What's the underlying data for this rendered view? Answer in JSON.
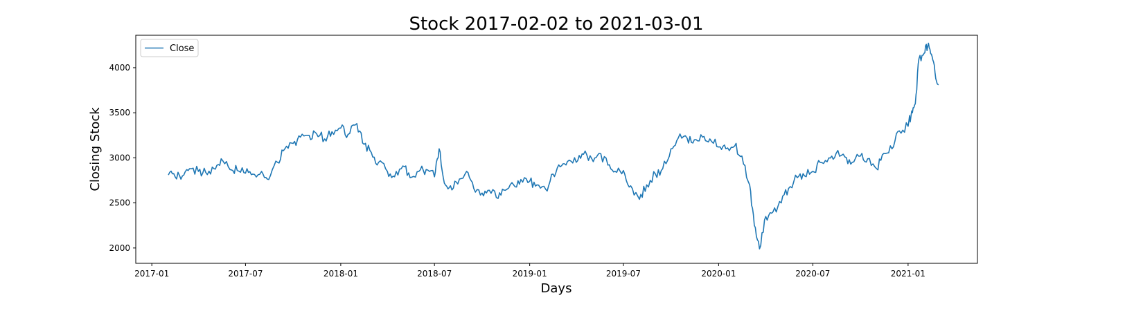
{
  "chart_data": {
    "type": "line",
    "title": "Stock 2017-02-02 to 2021-03-01",
    "xlabel": "Days",
    "ylabel": "Closing Stock",
    "x_ticks": [
      "2017-01",
      "2017-07",
      "2018-01",
      "2018-07",
      "2019-01",
      "2019-07",
      "2020-01",
      "2020-07",
      "2021-01"
    ],
    "y_ticks": [
      2000,
      2500,
      3000,
      3500,
      4000
    ],
    "xlim": [
      "2016-12-01",
      "2021-05-15"
    ],
    "ylim": [
      1830,
      4360
    ],
    "grid": false,
    "legend": {
      "position": "top-left",
      "entries": [
        "Close"
      ]
    },
    "series": [
      {
        "name": "Close",
        "color": "#1f77b4",
        "x": [
          "2017-02-02",
          "2017-02-15",
          "2017-03-01",
          "2017-03-15",
          "2017-04-01",
          "2017-04-15",
          "2017-05-01",
          "2017-05-15",
          "2017-06-01",
          "2017-06-15",
          "2017-07-01",
          "2017-07-15",
          "2017-08-01",
          "2017-08-15",
          "2017-09-01",
          "2017-09-15",
          "2017-10-01",
          "2017-10-15",
          "2017-11-01",
          "2017-11-15",
          "2017-12-01",
          "2017-12-15",
          "2018-01-01",
          "2018-01-15",
          "2018-02-01",
          "2018-02-15",
          "2018-03-01",
          "2018-03-15",
          "2018-04-01",
          "2018-04-15",
          "2018-05-01",
          "2018-05-15",
          "2018-06-01",
          "2018-06-15",
          "2018-07-01",
          "2018-07-10",
          "2018-07-20",
          "2018-08-01",
          "2018-08-15",
          "2018-09-01",
          "2018-09-15",
          "2018-10-01",
          "2018-10-15",
          "2018-11-01",
          "2018-11-15",
          "2018-12-01",
          "2018-12-15",
          "2019-01-01",
          "2019-01-15",
          "2019-02-01",
          "2019-02-15",
          "2019-03-01",
          "2019-03-15",
          "2019-04-01",
          "2019-04-15",
          "2019-05-01",
          "2019-05-15",
          "2019-06-01",
          "2019-06-15",
          "2019-07-01",
          "2019-07-15",
          "2019-08-01",
          "2019-08-15",
          "2019-09-01",
          "2019-09-15",
          "2019-10-01",
          "2019-10-15",
          "2019-11-01",
          "2019-11-15",
          "2019-12-01",
          "2019-12-15",
          "2020-01-01",
          "2020-01-15",
          "2020-02-01",
          "2020-02-15",
          "2020-03-01",
          "2020-03-10",
          "2020-03-20",
          "2020-04-01",
          "2020-04-15",
          "2020-05-01",
          "2020-05-15",
          "2020-06-01",
          "2020-06-15",
          "2020-07-01",
          "2020-07-15",
          "2020-08-01",
          "2020-08-15",
          "2020-09-01",
          "2020-09-15",
          "2020-10-01",
          "2020-10-15",
          "2020-11-01",
          "2020-11-15",
          "2020-12-01",
          "2020-12-15",
          "2021-01-01",
          "2021-01-08",
          "2021-01-15",
          "2021-01-22",
          "2021-02-01",
          "2021-02-08",
          "2021-02-15",
          "2021-02-22",
          "2021-03-01"
        ],
        "values": [
          2810,
          2790,
          2800,
          2880,
          2850,
          2840,
          2880,
          2990,
          2870,
          2860,
          2830,
          2820,
          2850,
          2760,
          2950,
          3100,
          3160,
          3230,
          3250,
          3270,
          3210,
          3290,
          3330,
          3260,
          3380,
          3150,
          3060,
          2950,
          2850,
          2790,
          2910,
          2780,
          2850,
          2870,
          2790,
          3100,
          2720,
          2690,
          2710,
          2850,
          2660,
          2610,
          2640,
          2550,
          2640,
          2700,
          2760,
          2740,
          2700,
          2650,
          2820,
          2900,
          2960,
          2950,
          3040,
          2990,
          3050,
          2920,
          2850,
          2860,
          2690,
          2540,
          2700,
          2820,
          2880,
          3100,
          3220,
          3220,
          3200,
          3230,
          3210,
          3120,
          3100,
          3130,
          3020,
          2700,
          2250,
          1990,
          2350,
          2400,
          2500,
          2660,
          2780,
          2800,
          2850,
          2950,
          3000,
          3050,
          3010,
          2950,
          3020,
          2990,
          2880,
          3050,
          3100,
          3300,
          3350,
          3520,
          3600,
          4100,
          4160,
          4240,
          4150,
          3950,
          3810
        ]
      }
    ]
  }
}
